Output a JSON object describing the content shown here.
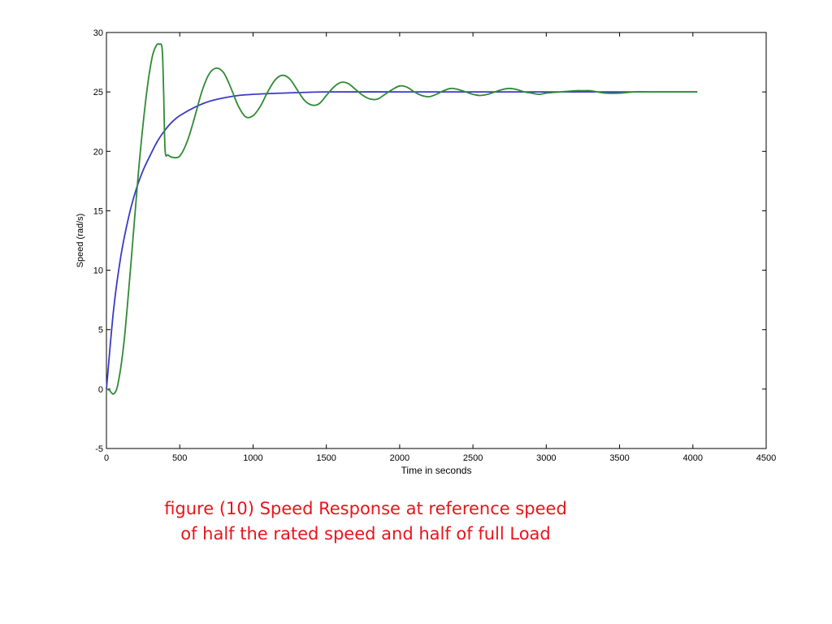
{
  "chart_data": {
    "type": "line",
    "title": "",
    "xlabel": "Time in seconds",
    "ylabel": "Speed (rad/s)",
    "xlim": [
      0,
      4500
    ],
    "ylim": [
      -5,
      30
    ],
    "xticks": [
      "0",
      "500",
      "1000",
      "1500",
      "2000",
      "2500",
      "3000",
      "3500",
      "4000",
      "4500"
    ],
    "yticks": [
      "-5",
      "0",
      "5",
      "10",
      "15",
      "20",
      "25",
      "30"
    ],
    "grid": false,
    "legend": "none",
    "series": [
      {
        "color": "#3a3ac8",
        "x": [
          0,
          50,
          100,
          150,
          200,
          250,
          300,
          350,
          400,
          450,
          500,
          600,
          700,
          800,
          900,
          1000,
          1200,
          1500,
          2000,
          2500,
          3000,
          3500,
          4030
        ],
        "y": [
          0,
          6.8,
          11.3,
          14.4,
          16.7,
          18.4,
          19.7,
          20.9,
          21.8,
          22.5,
          23.0,
          23.7,
          24.2,
          24.5,
          24.7,
          24.8,
          24.9,
          25.0,
          25.0,
          25.0,
          25.0,
          25.0,
          25.0
        ]
      },
      {
        "color": "#2f8a35",
        "x": [
          0,
          20,
          50,
          80,
          120,
          170,
          220,
          270,
          310,
          340,
          360,
          380,
          390,
          400,
          420,
          450,
          500,
          550,
          600,
          650,
          700,
          750,
          800,
          850,
          900,
          950,
          1000,
          1050,
          1100,
          1150,
          1200,
          1250,
          1300,
          1350,
          1400,
          1450,
          1500,
          1550,
          1600,
          1650,
          1700,
          1750,
          1800,
          1850,
          1900,
          1950,
          2000,
          2050,
          2100,
          2150,
          2200,
          2250,
          2300,
          2350,
          2400,
          2450,
          2500,
          2550,
          2600,
          2650,
          2700,
          2750,
          2800,
          2850,
          2900,
          2950,
          3000,
          3100,
          3200,
          3250,
          3300,
          3400,
          3500,
          3600,
          3700,
          3800,
          3900,
          4030
        ],
        "y": [
          0,
          -0.1,
          -0.4,
          0.5,
          4.0,
          11.0,
          18.5,
          24.5,
          27.8,
          28.9,
          29.0,
          28.6,
          25.0,
          20.1,
          19.7,
          19.5,
          19.6,
          20.8,
          22.8,
          25.0,
          26.5,
          27.0,
          26.6,
          25.3,
          23.8,
          22.9,
          23.0,
          23.8,
          25.0,
          26.0,
          26.4,
          26.1,
          25.2,
          24.3,
          23.9,
          24.0,
          24.7,
          25.4,
          25.8,
          25.7,
          25.2,
          24.7,
          24.4,
          24.4,
          24.8,
          25.2,
          25.5,
          25.4,
          25.0,
          24.7,
          24.6,
          24.8,
          25.1,
          25.3,
          25.2,
          25.0,
          24.8,
          24.7,
          24.8,
          25.0,
          25.2,
          25.3,
          25.2,
          25.0,
          24.9,
          24.8,
          24.9,
          25.0,
          25.1,
          25.1,
          25.1,
          24.9,
          24.9,
          25.0,
          25.0,
          25.0,
          25.0,
          25.0
        ]
      }
    ]
  },
  "caption": {
    "line1": "figure (10) Speed Response at reference speed",
    "line2": "of half the rated speed and half of full Load"
  }
}
